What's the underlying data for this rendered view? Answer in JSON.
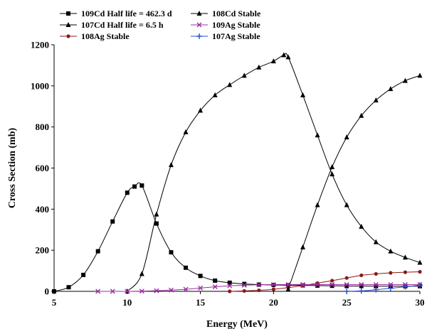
{
  "chart_data": {
    "type": "line",
    "xlabel": "Energy (MeV)",
    "ylabel": "Cross Section (mb)",
    "xlim": [
      5,
      30
    ],
    "ylim": [
      0,
      1200
    ],
    "xticks": [
      5,
      10,
      15,
      20,
      25,
      30
    ],
    "yticks": [
      0,
      200,
      400,
      600,
      800,
      1000,
      1200
    ],
    "grid": false,
    "legend_position": "top",
    "series": [
      {
        "name": "109Cd Half life = 462.3 d",
        "marker": "square",
        "color": "#000000",
        "x": [
          5,
          6,
          7,
          8,
          9,
          10,
          10.5,
          11,
          12,
          13,
          14,
          15,
          16,
          17,
          18,
          19,
          20,
          21,
          22,
          23,
          24,
          25,
          26,
          27,
          28,
          29,
          30
        ],
        "y": [
          0,
          20,
          80,
          195,
          340,
          480,
          510,
          515,
          330,
          190,
          115,
          75,
          52,
          42,
          36,
          33,
          31,
          30,
          29,
          28,
          27,
          26,
          26,
          25,
          25,
          25,
          25
        ]
      },
      {
        "name": "107Cd Half life = 6.5 h",
        "marker": "triangle",
        "color": "#000000",
        "x": [
          10,
          11,
          12,
          13,
          14,
          15,
          16,
          17,
          18,
          19,
          20,
          20.7,
          21,
          22,
          23,
          24,
          25,
          26,
          27,
          28,
          29,
          30
        ],
        "y": [
          0,
          85,
          375,
          615,
          775,
          880,
          955,
          1005,
          1050,
          1090,
          1120,
          1150,
          1140,
          955,
          760,
          570,
          420,
          315,
          240,
          195,
          165,
          140
        ]
      },
      {
        "name": "108Ag Stable",
        "marker": "circle",
        "color": "#8b1a1a",
        "x": [
          17,
          18,
          19,
          20,
          21,
          22,
          23,
          24,
          25,
          26,
          27,
          28,
          29,
          30
        ],
        "y": [
          0,
          2,
          5,
          10,
          18,
          28,
          40,
          52,
          65,
          78,
          85,
          90,
          93,
          95
        ]
      },
      {
        "name": "108Cd Stable",
        "marker": "triangle",
        "color": "#000000",
        "x": [
          21,
          22,
          23,
          24,
          25,
          26,
          27,
          28,
          29,
          30
        ],
        "y": [
          10,
          215,
          420,
          605,
          750,
          855,
          930,
          985,
          1025,
          1050
        ]
      },
      {
        "name": "109Ag Stable",
        "marker": "x",
        "color": "#9b30a0",
        "x": [
          8,
          9,
          10,
          11,
          12,
          13,
          14,
          15,
          16,
          17,
          18,
          19,
          20,
          21,
          22,
          23,
          24,
          25,
          26,
          27,
          28,
          29,
          30
        ],
        "y": [
          0,
          0,
          0,
          1,
          3,
          6,
          10,
          16,
          22,
          27,
          30,
          32,
          33,
          33,
          33,
          33,
          33,
          33,
          33,
          33,
          33,
          33,
          33
        ]
      },
      {
        "name": "107Ag Stable",
        "marker": "plus",
        "color": "#1f4fcf",
        "x": [
          25,
          26,
          27,
          28,
          29,
          30
        ],
        "y": [
          0,
          2,
          8,
          15,
          22,
          30
        ]
      }
    ]
  }
}
